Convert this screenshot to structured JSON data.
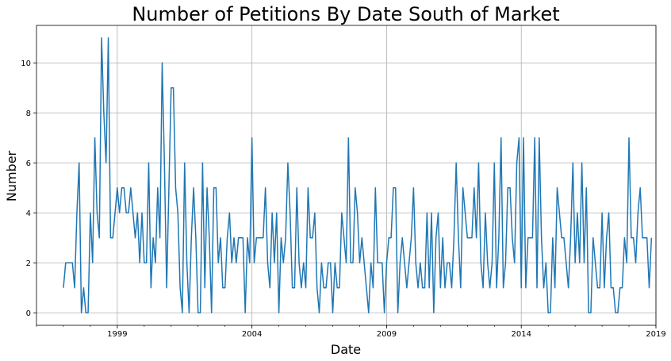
{
  "chart_data": {
    "type": "line",
    "title": "Number of Petitions By Date South of Market",
    "xlabel": "Date",
    "ylabel": "Number",
    "x_range": [
      "1996-01",
      "2019-01"
    ],
    "ylim": [
      -0.5,
      11.5
    ],
    "x_ticks": [
      {
        "label": "1999",
        "date": "1999-01"
      },
      {
        "label": "2004",
        "date": "2004-01"
      },
      {
        "label": "2009",
        "date": "2009-01"
      },
      {
        "label": "2014",
        "date": "2014-01"
      },
      {
        "label": "2019",
        "date": "2019-01"
      }
    ],
    "y_ticks": [
      0,
      2,
      4,
      6,
      8,
      10
    ],
    "grid": true,
    "line_color": "#1f77b4",
    "series": [
      {
        "start": "1997-01",
        "step": "month",
        "values": [
          1,
          2,
          2,
          2,
          2,
          1,
          4,
          6,
          0,
          1,
          0,
          0,
          4,
          2,
          7,
          4,
          3,
          11,
          8,
          6,
          11,
          3,
          3,
          4,
          5,
          4,
          5,
          5,
          4,
          4,
          5,
          4,
          3,
          4,
          2,
          4,
          2,
          2,
          6,
          1,
          3,
          2,
          5,
          3,
          10,
          6,
          1,
          5,
          9,
          9,
          5,
          4,
          1,
          0,
          6,
          2,
          0,
          3,
          5,
          3,
          0,
          0,
          6,
          1,
          5,
          3,
          0,
          5,
          5,
          2,
          3,
          1,
          1,
          3,
          4,
          2,
          3,
          2,
          3,
          3,
          3,
          0,
          3,
          2,
          7,
          2,
          3,
          3,
          3,
          3,
          5,
          2,
          1,
          4,
          2,
          4,
          0,
          3,
          2,
          3,
          6,
          4,
          1,
          1,
          5,
          2,
          1,
          2,
          1,
          5,
          3,
          3,
          4,
          1,
          0,
          2,
          1,
          1,
          2,
          2,
          0,
          2,
          1,
          1,
          4,
          3,
          2,
          7,
          2,
          2,
          5,
          4,
          2,
          3,
          2,
          1,
          0,
          2,
          1,
          5,
          2,
          2,
          2,
          0,
          2,
          3,
          3,
          5,
          5,
          0,
          2,
          3,
          2,
          1,
          2,
          3,
          5,
          2,
          1,
          2,
          1,
          1,
          4,
          1,
          4,
          0,
          3,
          4,
          1,
          3,
          1,
          2,
          2,
          1,
          3,
          6,
          3,
          1,
          5,
          4,
          3,
          3,
          3,
          5,
          3,
          6,
          2,
          1,
          4,
          2,
          1,
          2,
          6,
          1,
          3,
          7,
          1,
          2,
          5,
          5,
          3,
          2,
          6,
          7,
          1,
          7,
          1,
          3,
          3,
          3,
          7,
          1,
          7,
          3,
          1,
          2,
          0,
          0,
          3,
          1,
          5,
          4,
          3,
          3,
          2,
          1,
          3,
          6,
          2,
          4,
          2,
          6,
          2,
          5,
          0,
          0,
          3,
          2,
          1,
          1,
          4,
          1,
          3,
          4,
          1,
          1,
          0,
          0,
          1,
          1,
          3,
          2,
          7,
          3,
          3,
          2,
          4,
          5,
          3,
          3,
          3,
          1,
          3
        ]
      }
    ]
  }
}
